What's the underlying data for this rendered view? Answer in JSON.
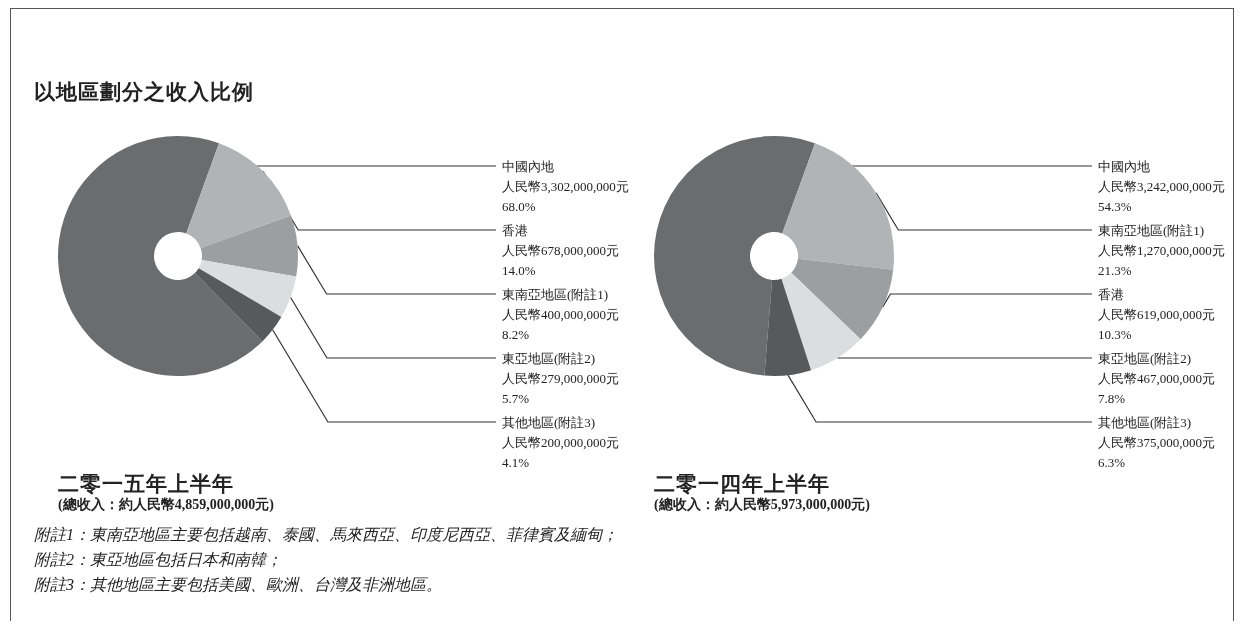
{
  "chart_data": [
    {
      "type": "donut",
      "title": "以地區劃分之收入比例",
      "xlabel": "二零一五年上半年",
      "subtitle": "(總收入：約人民幣4,859,000,000元)",
      "categories": [
        "中國內地",
        "香港",
        "東南亞地區(附註1)",
        "東亞地區(附註2)",
        "其他地區(附註3)"
      ],
      "values": [
        3302000000,
        678000000,
        400000000,
        279000000,
        200000000
      ],
      "colors": [
        "#6b6c6e",
        "#b2b3b5",
        "#9d9ea0",
        "#dcdddf",
        "#58595b"
      ],
      "value_labels": [
        "人民幣3,302,000,000元\n68.0%",
        "人民幣678,000,000元\n14.0%",
        "人民幣400,000,000元\n8.2%",
        "人民幣279,000,000元\n5.7%",
        "人民幣200,000,000元\n4.1%"
      ],
      "annotations": [
        "附註1：東南亞地區主要包括越南、泰國、馬來西亞、印度尼西亞、菲律賓及緬甸；",
        "附註2：東亞地區包括日本和南韓；",
        "附註3：其他地區主要包括美國、歐洲、台灣及非洲地區。"
      ]
    },
    {
      "type": "donut",
      "xlabel": "二零一四年上半年",
      "subtitle": "(總收入：約人民幣5,973,000,000元)",
      "categories": [
        "中國內地",
        "東南亞地區(附註1)",
        "香港",
        "東亞地區(附註2)",
        "其他地區(附註3)"
      ],
      "values": [
        3242000000,
        1270000000,
        619000000,
        467000000,
        375000000
      ],
      "colors": [
        "#6b6c6e",
        "#b2b3b5",
        "#9d9ea0",
        "#dcdddf",
        "#58595b"
      ],
      "value_labels": [
        "人民幣3,242,000,000元\n54.3%",
        "人民幣1,270,000,000元\n21.3%",
        "人民幣619,000,000元\n10.3%",
        "人民幣467,000,000元\n7.8%",
        "人民幣375,000,000元\n6.3%"
      ]
    }
  ]
}
